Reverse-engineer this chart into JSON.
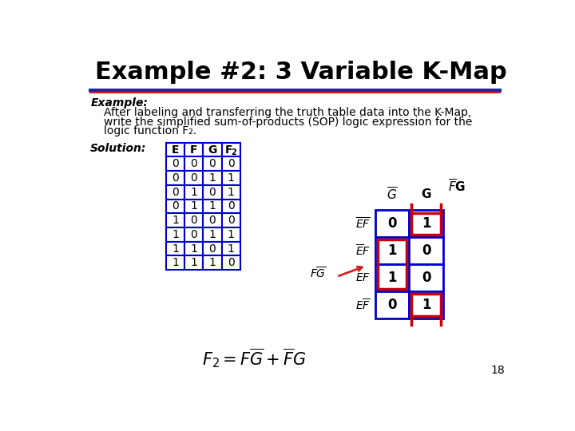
{
  "title": "Example #2: 3 Variable K-Map",
  "subtitle": "Example:",
  "body_line1": "After labeling and transferring the truth table data into the K-Map,",
  "body_line2": "write the simplified sum-of-products (SOP) logic expression for the",
  "body_line3": "logic function F₂.",
  "solution_label": "Solution:",
  "truth_table_headers": [
    "E",
    "F",
    "G",
    "F₂"
  ],
  "truth_table_data": [
    [
      0,
      0,
      0,
      0
    ],
    [
      0,
      0,
      1,
      1
    ],
    [
      0,
      1,
      0,
      1
    ],
    [
      0,
      1,
      1,
      0
    ],
    [
      1,
      0,
      0,
      0
    ],
    [
      1,
      0,
      1,
      1
    ],
    [
      1,
      1,
      0,
      1
    ],
    [
      1,
      1,
      1,
      0
    ]
  ],
  "kmap_values": [
    [
      0,
      1
    ],
    [
      1,
      0
    ],
    [
      1,
      0
    ],
    [
      0,
      1
    ]
  ],
  "page_number": "18",
  "bg_color": "#ffffff",
  "table_border_color": "#0000cc",
  "highlight_color": "#cc0000",
  "text_color": "#000000",
  "title_color": "#000000",
  "blue_line_color": "#2222aa",
  "red_line_color": "#cc2222",
  "title_fontsize": 22,
  "body_fontsize": 10,
  "label_fontsize": 10,
  "kmap_val_fontsize": 12,
  "formula_fontsize": 15
}
